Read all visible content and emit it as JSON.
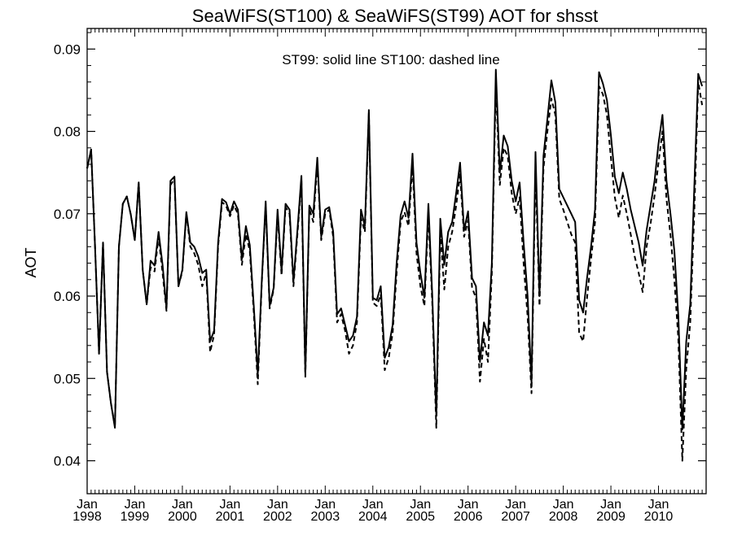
{
  "chart_data": {
    "type": "line",
    "title": "SeaWiFS(ST100) & SeaWiFS(ST99)  AOT for shsst",
    "ylabel": "AOT",
    "xlabel": "",
    "annotation": "ST99: solid line   ST100: dashed line",
    "x_start": "Jan 1998",
    "x_step": "monthly",
    "xlim": [
      "Jan 1998",
      "Dec 2010"
    ],
    "ylim": [
      0.036,
      0.0925
    ],
    "yticks": [
      0.04,
      0.05,
      0.06,
      0.07,
      0.08,
      0.09
    ],
    "ytick_labels": [
      "0.04",
      "0.05",
      "0.06",
      "0.07",
      "0.08",
      "0.09"
    ],
    "xtick_labels": [
      {
        "month": "Jan",
        "year": "1998"
      },
      {
        "month": "Jan",
        "year": "1999"
      },
      {
        "month": "Jan",
        "year": "2000"
      },
      {
        "month": "Jan",
        "year": "2001"
      },
      {
        "month": "Jan",
        "year": "2002"
      },
      {
        "month": "Jan",
        "year": "2003"
      },
      {
        "month": "Jan",
        "year": "2004"
      },
      {
        "month": "Jan",
        "year": "2005"
      },
      {
        "month": "Jan",
        "year": "2006"
      },
      {
        "month": "Jan",
        "year": "2007"
      },
      {
        "month": "Jan",
        "year": "2008"
      },
      {
        "month": "Jan",
        "year": "2009"
      },
      {
        "month": "Jan",
        "year": "2010"
      }
    ],
    "grid": false,
    "legend": "none",
    "series": [
      {
        "name": "ST99",
        "style": "solid",
        "values": [
          0.0755,
          0.0778,
          0.066,
          0.053,
          0.0665,
          0.0508,
          0.047,
          0.044,
          0.066,
          0.0712,
          0.0721,
          0.0699,
          0.0668,
          0.0738,
          0.0632,
          0.059,
          0.0643,
          0.0637,
          0.0678,
          0.0638,
          0.0585,
          0.074,
          0.0745,
          0.0612,
          0.0632,
          0.0702,
          0.0665,
          0.066,
          0.0648,
          0.0628,
          0.0632,
          0.0545,
          0.0558,
          0.0665,
          0.0718,
          0.0714,
          0.07,
          0.0715,
          0.0705,
          0.0645,
          0.0685,
          0.0662,
          0.0588,
          0.0505,
          0.0618,
          0.0715,
          0.0588,
          0.061,
          0.0705,
          0.063,
          0.0712,
          0.0705,
          0.0618,
          0.068,
          0.0746,
          0.0505,
          0.071,
          0.07,
          0.0768,
          0.0672,
          0.0705,
          0.0708,
          0.0678,
          0.0578,
          0.0585,
          0.0565,
          0.0545,
          0.0552,
          0.0575,
          0.0705,
          0.0685,
          0.0826,
          0.0598,
          0.0595,
          0.0612,
          0.0525,
          0.0538,
          0.0565,
          0.064,
          0.0698,
          0.0715,
          0.0695,
          0.0773,
          0.0665,
          0.0628,
          0.0598,
          0.0712,
          0.06,
          0.0455,
          0.0694,
          0.0638,
          0.0678,
          0.069,
          0.0725,
          0.0762,
          0.068,
          0.0703,
          0.0622,
          0.0612,
          0.052,
          0.0568,
          0.0552,
          0.064,
          0.0875,
          0.075,
          0.0795,
          0.0782,
          0.074,
          0.0715,
          0.0738,
          0.0665,
          0.06,
          0.0495,
          0.0775,
          0.06,
          0.077,
          0.0815,
          0.0862,
          0.0835,
          0.073,
          0.072,
          0.071,
          0.07,
          0.069,
          0.0595,
          0.058,
          0.0622,
          0.066,
          0.0705,
          0.0872,
          0.0858,
          0.0838,
          0.0795,
          0.0745,
          0.0725,
          0.075,
          0.073,
          0.0705,
          0.0685,
          0.0665,
          0.0637,
          0.068,
          0.071,
          0.074,
          0.0785,
          0.082,
          0.074,
          0.07,
          0.0655,
          0.0575,
          0.0438,
          0.0545,
          0.059,
          0.073,
          0.087,
          0.0855
        ]
      },
      {
        "name": "ST100",
        "style": "dashed",
        "values": [
          0.0755,
          0.0778,
          0.066,
          0.053,
          0.0665,
          0.0508,
          0.047,
          0.0442,
          0.066,
          0.0712,
          0.0721,
          0.0699,
          0.0668,
          0.0738,
          0.0632,
          0.059,
          0.0635,
          0.063,
          0.0672,
          0.0628,
          0.0582,
          0.0735,
          0.0742,
          0.0612,
          0.063,
          0.07,
          0.066,
          0.0652,
          0.0638,
          0.0612,
          0.0628,
          0.0532,
          0.0553,
          0.066,
          0.0714,
          0.071,
          0.0697,
          0.071,
          0.07,
          0.0638,
          0.0675,
          0.0655,
          0.058,
          0.0493,
          0.0615,
          0.0712,
          0.0585,
          0.0608,
          0.07,
          0.0625,
          0.0708,
          0.07,
          0.0612,
          0.0675,
          0.074,
          0.0502,
          0.0706,
          0.069,
          0.0762,
          0.0668,
          0.07,
          0.0705,
          0.0672,
          0.0568,
          0.0578,
          0.0558,
          0.053,
          0.054,
          0.0568,
          0.0695,
          0.0678,
          0.0822,
          0.0592,
          0.0588,
          0.0602,
          0.051,
          0.0525,
          0.0555,
          0.0628,
          0.069,
          0.0702,
          0.0685,
          0.076,
          0.0652,
          0.0612,
          0.0588,
          0.07,
          0.059,
          0.044,
          0.068,
          0.0608,
          0.066,
          0.0678,
          0.071,
          0.0748,
          0.0672,
          0.0692,
          0.061,
          0.0598,
          0.0496,
          0.0548,
          0.052,
          0.0628,
          0.0858,
          0.0735,
          0.078,
          0.077,
          0.0725,
          0.07,
          0.072,
          0.064,
          0.0575,
          0.0482,
          0.0755,
          0.0588,
          0.0755,
          0.08,
          0.084,
          0.082,
          0.0718,
          0.0705,
          0.069,
          0.0675,
          0.0665,
          0.0555,
          0.0545,
          0.0598,
          0.0645,
          0.069,
          0.0855,
          0.0845,
          0.082,
          0.0768,
          0.072,
          0.0695,
          0.0722,
          0.07,
          0.0675,
          0.0648,
          0.0628,
          0.0605,
          0.066,
          0.0688,
          0.0722,
          0.0762,
          0.08,
          0.0718,
          0.0675,
          0.062,
          0.0548,
          0.04,
          0.0512,
          0.0568,
          0.07,
          0.086,
          0.0832
        ]
      }
    ]
  }
}
